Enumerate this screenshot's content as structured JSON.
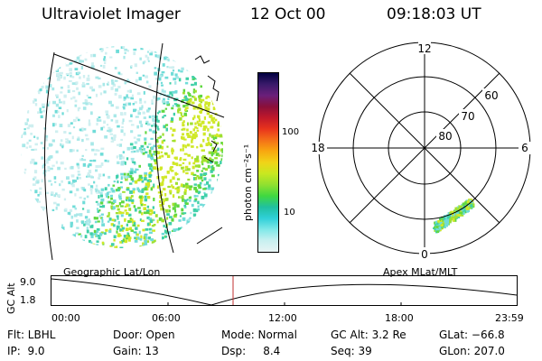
{
  "header": {
    "title": "Ultraviolet Imager",
    "date": "12 Oct 00",
    "time": "09:18:03 UT"
  },
  "colorbar": {
    "unit_label": "photon cm⁻²s⁻¹",
    "ticks": [
      "100",
      "10"
    ],
    "colors": [
      "#000040",
      "#3a1a6a",
      "#6a1f7a",
      "#8a0f3a",
      "#c0182a",
      "#e8341c",
      "#f47018",
      "#f8a810",
      "#f0d418",
      "#c8e820",
      "#90e030",
      "#40d840",
      "#20c0a0",
      "#30d0d8",
      "#80e8e8",
      "#c8f0f0",
      "#e8f4f4"
    ]
  },
  "polar_plot": {
    "mlt_labels": {
      "top": "12",
      "left": "18",
      "right": "6",
      "bottom": "0"
    },
    "lat_labels": [
      "60",
      "70",
      "80"
    ]
  },
  "timeline": {
    "left_label": "Geographic Lat/Lon",
    "right_label": "Apex MLat/MLT",
    "y_axis_label": "GC Alt",
    "y_ticks": [
      "9.0",
      "1.8"
    ],
    "x_ticks": [
      "00:00",
      "06:00",
      "12:00",
      "18:00",
      "23:59"
    ],
    "marker_color": "#c03030"
  },
  "info": {
    "flt": "Flt: LBHL",
    "ip": "IP:  9.0",
    "door": "Door: Open",
    "gain": "Gain: 13",
    "mode": "Mode: Normal",
    "dsp": "Dsp:     8.4",
    "gcalt": "GC Alt: 3.2 Re",
    "seq": "Seq: 39",
    "glat": "GLat: −66.8",
    "glon": "GLon: 207.0"
  }
}
